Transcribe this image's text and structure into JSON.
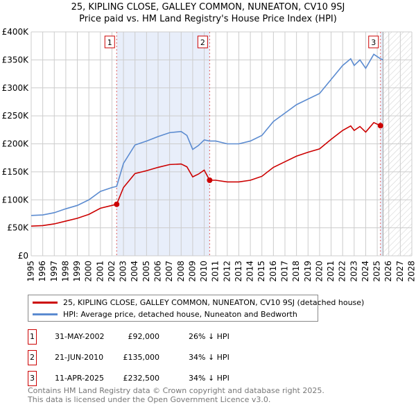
{
  "title_line1": "25, KIPLING CLOSE, GALLEY COMMON, NUNEATON, CV10 9SJ",
  "title_line2": "Price paid vs. HM Land Registry's House Price Index (HPI)",
  "colors": {
    "property": "#cc0000",
    "hpi": "#5b8bd0",
    "shade": "#e8eefa",
    "grid": "#cccccc"
  },
  "chart_data": {
    "type": "line",
    "xlim": [
      1995,
      2028
    ],
    "ylim": [
      0,
      400000
    ],
    "yticks": [
      {
        "v": 0,
        "label": "£0"
      },
      {
        "v": 50000,
        "label": "£50K"
      },
      {
        "v": 100000,
        "label": "£100K"
      },
      {
        "v": 150000,
        "label": "£150K"
      },
      {
        "v": 200000,
        "label": "£200K"
      },
      {
        "v": 250000,
        "label": "£250K"
      },
      {
        "v": 300000,
        "label": "£300K"
      },
      {
        "v": 350000,
        "label": "£350K"
      },
      {
        "v": 400000,
        "label": "£400K"
      }
    ],
    "xticks": [
      1995,
      1996,
      1997,
      1998,
      1999,
      2000,
      2001,
      2002,
      2003,
      2004,
      2005,
      2006,
      2007,
      2008,
      2009,
      2010,
      2011,
      2012,
      2013,
      2014,
      2015,
      2016,
      2017,
      2018,
      2019,
      2020,
      2021,
      2022,
      2023,
      2024,
      2025,
      2026,
      2027,
      2028
    ],
    "shaded_span": [
      2002.41,
      2010.47
    ],
    "forecast_hatch_from": 2025.5,
    "x": [
      1995,
      1996,
      1997,
      1998,
      1999,
      2000,
      2001,
      2002,
      2002.41,
      2003,
      2004,
      2005,
      2006,
      2007,
      2008,
      2008.5,
      2009,
      2009.5,
      2010,
      2010.47,
      2011,
      2012,
      2013,
      2014,
      2015,
      2016,
      2017,
      2018,
      2019,
      2020,
      2021,
      2022,
      2022.7,
      2023,
      2023.5,
      2024,
      2024.7,
      2025.28,
      2025.5
    ],
    "series": [
      {
        "name": "25, KIPLING CLOSE, GALLEY COMMON, NUNEATON, CV10 9SJ (detached house)",
        "color": "#cc0000",
        "values": [
          53000,
          54000,
          57000,
          62000,
          67000,
          74000,
          85000,
          90000,
          92000,
          122000,
          147000,
          152000,
          158000,
          163000,
          164000,
          159000,
          141000,
          146000,
          153000,
          135000,
          135000,
          132000,
          132000,
          135000,
          142000,
          158000,
          168000,
          178000,
          185000,
          191000,
          208000,
          224000,
          232000,
          224000,
          231000,
          221000,
          238000,
          232500,
          231000
        ]
      },
      {
        "name": "HPI: Average price, detached house, Nuneaton and Bedworth",
        "color": "#5b8bd0",
        "values": [
          72000,
          73000,
          77000,
          84000,
          90000,
          100000,
          115000,
          122000,
          124000,
          165000,
          198000,
          205000,
          213000,
          220000,
          222000,
          215000,
          190000,
          197000,
          207000,
          205000,
          205000,
          200000,
          200000,
          205000,
          215000,
          240000,
          255000,
          270000,
          280000,
          290000,
          315000,
          340000,
          352000,
          340000,
          350000,
          335000,
          360000,
          352000,
          350000
        ]
      }
    ],
    "sales": [
      {
        "label": "1",
        "x": 2002.41,
        "value": 92000
      },
      {
        "label": "2",
        "x": 2010.47,
        "value": 135000
      },
      {
        "label": "3",
        "x": 2025.28,
        "value": 232500
      }
    ]
  },
  "legend": {
    "property": "25, KIPLING CLOSE, GALLEY COMMON, NUNEATON, CV10 9SJ (detached house)",
    "hpi": "HPI: Average price, detached house, Nuneaton and Bedworth"
  },
  "sales_table": [
    {
      "num": "1",
      "date": "31-MAY-2002",
      "price": "£92,000",
      "hpi": "26% ↓ HPI"
    },
    {
      "num": "2",
      "date": "21-JUN-2010",
      "price": "£135,000",
      "hpi": "34% ↓ HPI"
    },
    {
      "num": "3",
      "date": "11-APR-2025",
      "price": "£232,500",
      "hpi": "34% ↓ HPI"
    }
  ],
  "footer": {
    "line1": "Contains HM Land Registry data © Crown copyright and database right 2025.",
    "line2": "This data is licensed under the Open Government Licence v3.0."
  }
}
